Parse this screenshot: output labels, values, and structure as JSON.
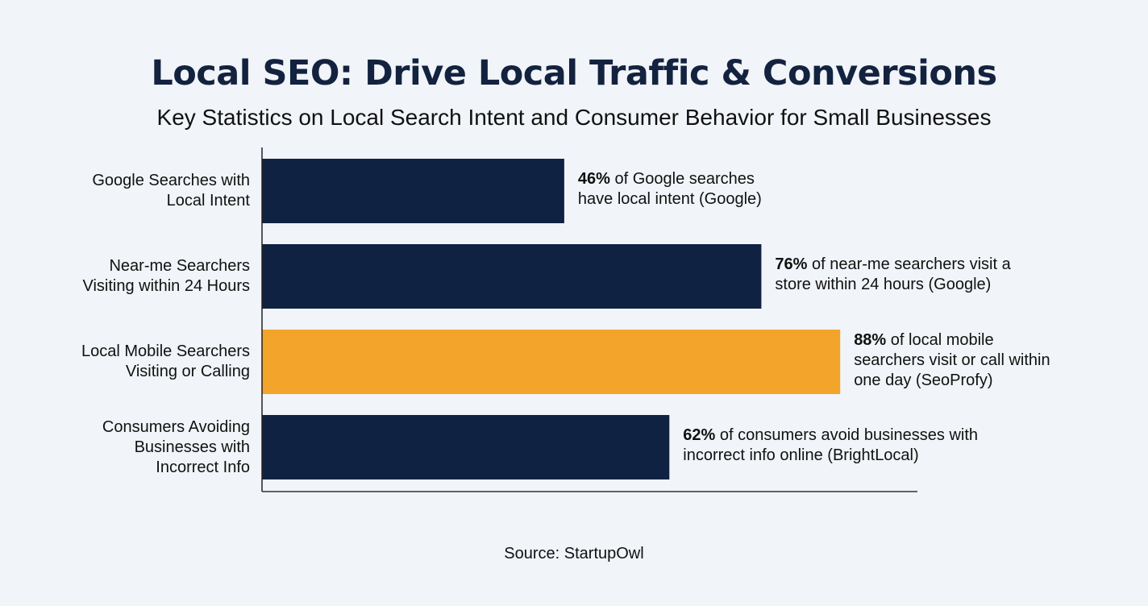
{
  "chart_data": {
    "type": "bar",
    "orientation": "horizontal",
    "title": "Local SEO: Drive Local Traffic & Conversions",
    "subtitle": "Key Statistics on Local Search Intent and Consumer Behavior for Small Businesses",
    "source": "Source: StartupOwl",
    "xlim": [
      0,
      100
    ],
    "grid": false,
    "categories": [
      [
        "Google Searches with",
        "Local Intent"
      ],
      [
        "Near-me Searchers",
        "Visiting within 24 Hours"
      ],
      [
        "Local Mobile Searchers",
        "Visiting or Calling"
      ],
      [
        "Consumers Avoiding",
        "Businesses with",
        "Incorrect Info"
      ]
    ],
    "values": [
      46,
      76,
      88,
      62
    ],
    "annotations": [
      {
        "bold": "46%",
        "lines": [
          " of Google searches",
          "have local intent (Google)"
        ]
      },
      {
        "bold": "76%",
        "lines": [
          " of near-me searchers visit a",
          "store within 24 hours (Google)"
        ]
      },
      {
        "bold": "88%",
        "lines": [
          " of local mobile",
          "searchers visit or call within",
          "one day (SeoProfy)"
        ]
      },
      {
        "bold": "62%",
        "lines": [
          " of consumers avoid businesses with",
          "incorrect info online (BrightLocal)"
        ]
      }
    ],
    "colors": [
      "#0f2242",
      "#0f2242",
      "#f2a52a",
      "#0f2242"
    ],
    "highlight_index": 2
  }
}
